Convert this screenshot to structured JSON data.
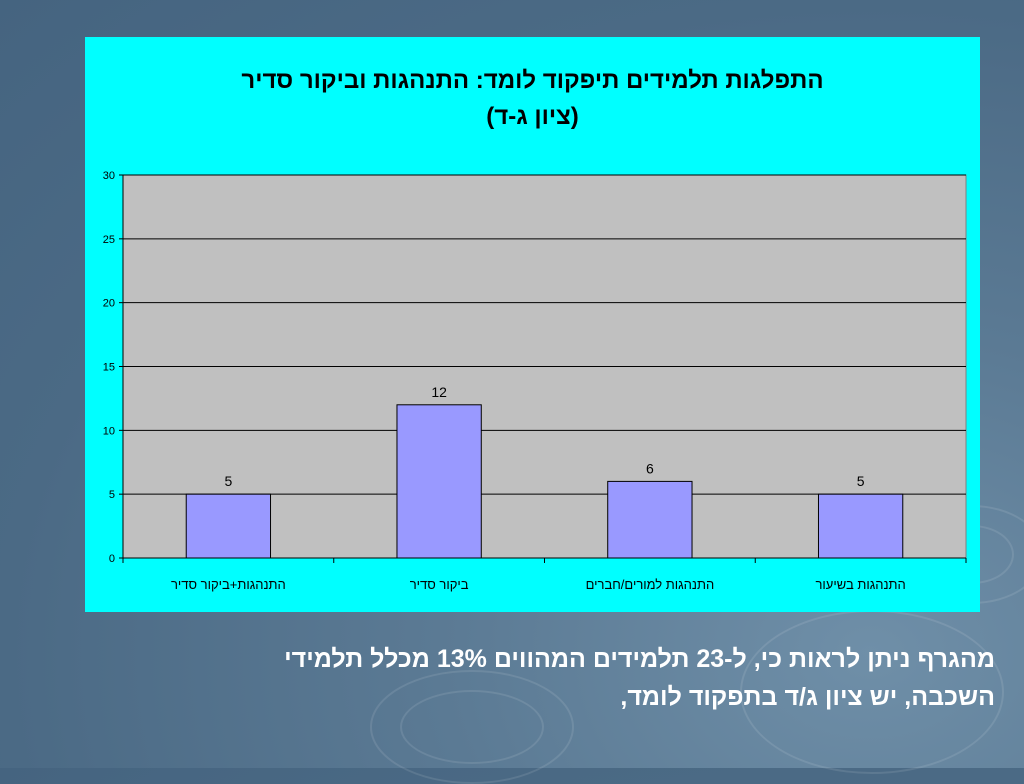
{
  "background": {
    "base_color": "#4b6a85",
    "chart_area_color": "#00ffff",
    "plot_color": "#c0c0c0",
    "bar_color": "#9999ff"
  },
  "chart_data": {
    "type": "bar",
    "title": "התפלגות תלמידים תיפקוד לומד: התנהגות וביקור סדיר",
    "subtitle": "(ציון ג-ד)",
    "categories": [
      "התנהגות+ביקור סדיר",
      "ביקור סדיר",
      "התנהגות למורים/חברים",
      "התנהגות בשיעור"
    ],
    "values": [
      5,
      12,
      6,
      5
    ],
    "data_labels": [
      "5",
      "12",
      "6",
      "5"
    ],
    "ylim": [
      0,
      30
    ],
    "yticks": [
      0,
      5,
      10,
      15,
      20,
      25,
      30
    ],
    "ytick_labels": [
      "0",
      "5",
      "10",
      "15",
      "20",
      "25",
      "30"
    ],
    "grid": true,
    "legend": "none"
  },
  "caption": {
    "line1": "מהגרף ניתן לראות כי, ל-23 תלמידים המהווים  13% מכלל תלמידי",
    "line2": "השכבה, יש ציון ג/ד בתפקוד לומד,"
  }
}
